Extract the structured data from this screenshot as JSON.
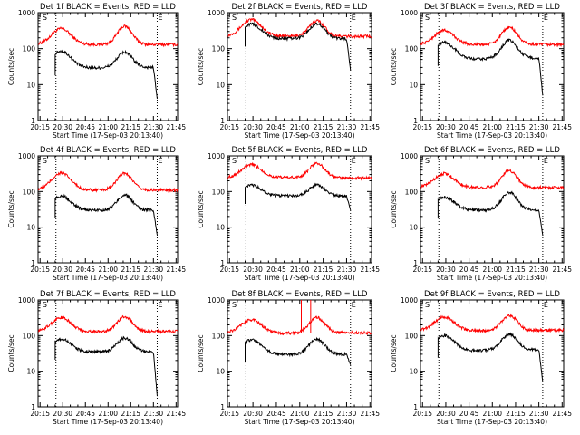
{
  "window": {
    "background": "#ffffff"
  },
  "colors": {
    "events": "#000000",
    "lld": "#ff0000",
    "axis": "#000000"
  },
  "chart_data": [
    {
      "type": "line",
      "title": "Det 1f BLACK = Events, RED = LLD",
      "xlabel": "Start Time (17-Sep-03 20:13:40)",
      "ylabel": "Counts/sec",
      "xticks": [
        "20:15",
        "20:30",
        "20:45",
        "21:00",
        "21:15",
        "21:30",
        "21:45"
      ],
      "yticks": [
        "1",
        "10",
        "100",
        "1000"
      ],
      "ylim": [
        1,
        1000
      ],
      "xlim_min": [
        13.67,
        106
      ],
      "vlines_min": [
        25.5,
        92.5
      ],
      "markers": [
        {
          "label": "S",
          "at_min": 16
        },
        {
          "label": "E",
          "at_min": 92.5
        }
      ],
      "series": [
        {
          "name": "LLD",
          "color": "#ff0000",
          "start_min": 14,
          "end_min": 106,
          "base": 130,
          "peak": 360,
          "peak2": 420,
          "dip": 130
        },
        {
          "name": "Events",
          "color": "#000000",
          "start_min": 25,
          "end_min": 92.5,
          "base": 30,
          "peak": 85,
          "peak2": 80,
          "dip": 28,
          "dropto": 4
        }
      ]
    },
    {
      "type": "line",
      "title": "Det 2f BLACK = Events, RED = LLD",
      "xlabel": "Start Time (17-Sep-03 20:13:40)",
      "ylabel": "Counts/sec",
      "xticks": [
        "20:15",
        "20:30",
        "20:45",
        "21:00",
        "21:15",
        "21:30",
        "21:45"
      ],
      "yticks": [
        "1",
        "10",
        "100",
        "1000"
      ],
      "ylim": [
        1,
        1000
      ],
      "xlim_min": [
        13.67,
        106
      ],
      "vlines_min": [
        25.5,
        92.5
      ],
      "markers": [
        {
          "label": "S",
          "at_min": 16
        },
        {
          "label": "E",
          "at_min": 92.5
        }
      ],
      "series": [
        {
          "name": "LLD",
          "color": "#ff0000",
          "start_min": 14,
          "end_min": 106,
          "base": 220,
          "peak": 640,
          "peak2": 600,
          "dip": 230
        },
        {
          "name": "Events",
          "color": "#000000",
          "start_min": 25,
          "end_min": 92.5,
          "base": 190,
          "peak": 480,
          "peak2": 500,
          "dip": 190,
          "dropto": 25
        }
      ]
    },
    {
      "type": "line",
      "title": "Det 3f BLACK = Events, RED = LLD",
      "xlabel": "Start Time (17-Sep-03 20:13:40)",
      "ylabel": "Counts/sec",
      "xticks": [
        "20:15",
        "20:30",
        "20:45",
        "21:00",
        "21:15",
        "21:30",
        "21:45"
      ],
      "yticks": [
        "1",
        "10",
        "100",
        "1000"
      ],
      "ylim": [
        1,
        1000
      ],
      "xlim_min": [
        13.67,
        106
      ],
      "vlines_min": [
        25.5,
        92.5
      ],
      "markers": [
        {
          "label": "S",
          "at_min": 16
        },
        {
          "label": "E",
          "at_min": 92.5
        }
      ],
      "series": [
        {
          "name": "LLD",
          "color": "#ff0000",
          "start_min": 14,
          "end_min": 106,
          "base": 130,
          "peak": 320,
          "peak2": 390,
          "dip": 130
        },
        {
          "name": "Events",
          "color": "#000000",
          "start_min": 25,
          "end_min": 92.5,
          "base": 55,
          "peak": 150,
          "peak2": 170,
          "dip": 45,
          "dropto": 5
        }
      ]
    },
    {
      "type": "line",
      "title": "Det 4f BLACK = Events, RED = LLD",
      "xlabel": "Start Time (17-Sep-03 20:13:40)",
      "ylabel": "Counts/sec",
      "xticks": [
        "20:15",
        "20:30",
        "20:45",
        "21:00",
        "21:15",
        "21:30",
        "21:45"
      ],
      "yticks": [
        "1",
        "10",
        "100",
        "1000"
      ],
      "ylim": [
        1,
        1000
      ],
      "xlim_min": [
        13.67,
        106
      ],
      "vlines_min": [
        25.5,
        92.5
      ],
      "markers": [
        {
          "label": "S",
          "at_min": 16
        },
        {
          "label": "E",
          "at_min": 92.5
        }
      ],
      "series": [
        {
          "name": "LLD",
          "color": "#ff0000",
          "start_min": 14,
          "end_min": 106,
          "base": 110,
          "peak": 330,
          "peak2": 330,
          "dip": 110
        },
        {
          "name": "Events",
          "color": "#000000",
          "start_min": 25,
          "end_min": 92.5,
          "base": 30,
          "peak": 75,
          "peak2": 80,
          "dip": 30,
          "dropto": 6
        }
      ]
    },
    {
      "type": "line",
      "title": "Det 5f BLACK = Events, RED = LLD",
      "xlabel": "Start Time (17-Sep-03 20:13:40)",
      "ylabel": "Counts/sec",
      "xticks": [
        "20:15",
        "20:30",
        "20:45",
        "21:00",
        "21:15",
        "21:30",
        "21:45"
      ],
      "yticks": [
        "1",
        "10",
        "100",
        "1000"
      ],
      "ylim": [
        1,
        1000
      ],
      "xlim_min": [
        13.67,
        106
      ],
      "vlines_min": [
        25.5,
        92.5
      ],
      "markers": [
        {
          "label": "S",
          "at_min": 16
        },
        {
          "label": "E",
          "at_min": 92.5
        }
      ],
      "series": [
        {
          "name": "LLD",
          "color": "#ff0000",
          "start_min": 14,
          "end_min": 106,
          "base": 240,
          "peak": 560,
          "peak2": 620,
          "dip": 260
        },
        {
          "name": "Events",
          "color": "#000000",
          "start_min": 25,
          "end_min": 92.5,
          "base": 75,
          "peak": 150,
          "peak2": 150,
          "dip": 75,
          "dropto": 30
        }
      ]
    },
    {
      "type": "line",
      "title": "Det 6f BLACK = Events, RED = LLD",
      "xlabel": "Start Time (17-Sep-03 20:13:40)",
      "ylabel": "Counts/sec",
      "xticks": [
        "20:15",
        "20:30",
        "20:45",
        "21:00",
        "21:15",
        "21:30",
        "21:45"
      ],
      "yticks": [
        "1",
        "10",
        "100",
        "1000"
      ],
      "ylim": [
        1,
        1000
      ],
      "xlim_min": [
        13.67,
        106
      ],
      "vlines_min": [
        25.5,
        92.5
      ],
      "markers": [
        {
          "label": "S",
          "at_min": 16
        },
        {
          "label": "E",
          "at_min": 92.5
        }
      ],
      "series": [
        {
          "name": "LLD",
          "color": "#ff0000",
          "start_min": 14,
          "end_min": 106,
          "base": 130,
          "peak": 320,
          "peak2": 390,
          "dip": 130
        },
        {
          "name": "Events",
          "color": "#000000",
          "start_min": 25,
          "end_min": 92.5,
          "base": 30,
          "peak": 70,
          "peak2": 95,
          "dip": 30,
          "dropto": 6
        }
      ]
    },
    {
      "type": "line",
      "title": "Det 7f BLACK = Events, RED = LLD",
      "xlabel": "Start Time (17-Sep-03 20:13:40)",
      "ylabel": "Counts/sec",
      "xticks": [
        "20:15",
        "20:30",
        "20:45",
        "21:00",
        "21:15",
        "21:30",
        "21:45"
      ],
      "yticks": [
        "1",
        "10",
        "100",
        "1000"
      ],
      "ylim": [
        1,
        1000
      ],
      "xlim_min": [
        13.67,
        106
      ],
      "vlines_min": [
        25.5,
        92.5
      ],
      "markers": [
        {
          "label": "S",
          "at_min": 16
        },
        {
          "label": "E",
          "at_min": 92.5
        }
      ],
      "series": [
        {
          "name": "LLD",
          "color": "#ff0000",
          "start_min": 14,
          "end_min": 106,
          "base": 130,
          "peak": 320,
          "peak2": 340,
          "dip": 130
        },
        {
          "name": "Events",
          "color": "#000000",
          "start_min": 25,
          "end_min": 92.5,
          "base": 35,
          "peak": 80,
          "peak2": 85,
          "dip": 35,
          "dropto": 2
        }
      ]
    },
    {
      "type": "line",
      "title": "Det 8f BLACK = Events, RED = LLD",
      "xlabel": "Start Time (17-Sep-03 20:13:40)",
      "ylabel": "Counts/sec",
      "xticks": [
        "20:15",
        "20:30",
        "20:45",
        "21:00",
        "21:15",
        "21:30",
        "21:45"
      ],
      "yticks": [
        "1",
        "10",
        "100",
        "1000"
      ],
      "ylim": [
        1,
        1000
      ],
      "xlim_min": [
        13.67,
        106
      ],
      "vlines_min": [
        25.5,
        92.5
      ],
      "markers": [
        {
          "label": "S",
          "at_min": 16
        },
        {
          "label": "E",
          "at_min": 92.5
        }
      ],
      "series": [
        {
          "name": "LLD",
          "color": "#ff0000",
          "start_min": 14,
          "end_min": 106,
          "base": 120,
          "peak": 280,
          "peak2": 320,
          "dip": 110,
          "spikes": [
            {
              "at_min": 61,
              "to": 1000
            },
            {
              "at_min": 67,
              "to": 1000
            }
          ]
        },
        {
          "name": "Events",
          "color": "#000000",
          "start_min": 25,
          "end_min": 92.5,
          "base": 30,
          "peak": 75,
          "peak2": 80,
          "dip": 30,
          "dropto": 15
        }
      ]
    },
    {
      "type": "line",
      "title": "Det 9f BLACK = Events, RED = LLD",
      "xlabel": "Start Time (17-Sep-03 20:13:40)",
      "ylabel": "Counts/sec",
      "xticks": [
        "20:15",
        "20:30",
        "20:45",
        "21:00",
        "21:15",
        "21:30",
        "21:45"
      ],
      "yticks": [
        "1",
        "10",
        "100",
        "1000"
      ],
      "ylim": [
        1,
        1000
      ],
      "xlim_min": [
        13.67,
        106
      ],
      "vlines_min": [
        25.5,
        92.5
      ],
      "markers": [
        {
          "label": "S",
          "at_min": 16
        },
        {
          "label": "E",
          "at_min": 92.5
        }
      ],
      "series": [
        {
          "name": "LLD",
          "color": "#ff0000",
          "start_min": 14,
          "end_min": 106,
          "base": 140,
          "peak": 330,
          "peak2": 370,
          "dip": 130
        },
        {
          "name": "Events",
          "color": "#000000",
          "start_min": 25,
          "end_min": 92.5,
          "base": 40,
          "peak": 100,
          "peak2": 110,
          "dip": 35,
          "dropto": 5
        }
      ]
    }
  ]
}
